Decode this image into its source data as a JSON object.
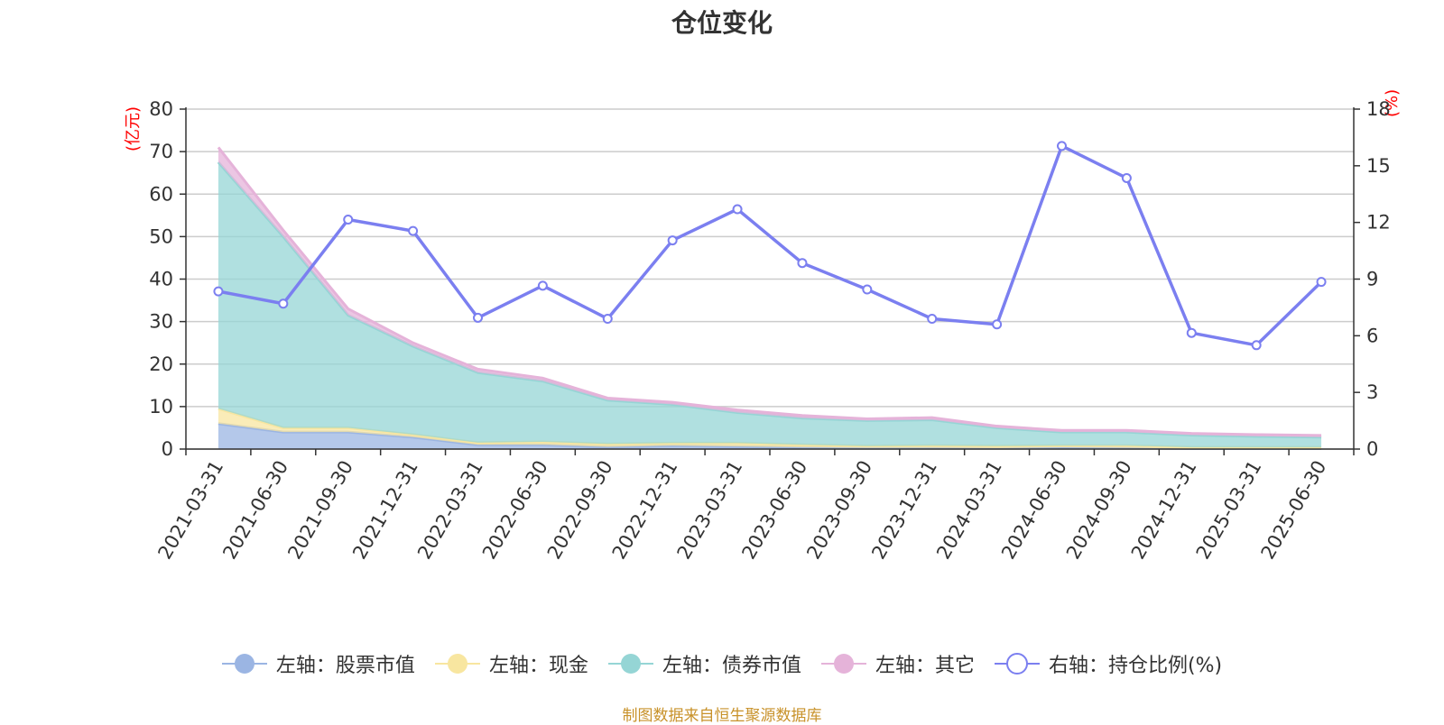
{
  "title": "仓位变化",
  "source": "制图数据来自恒生聚源数据库",
  "colors": {
    "stock": "#9bb5e3",
    "cash": "#f8e6a0",
    "bond": "#95d5d5",
    "other": "#e5b3d9",
    "ratio": "#7b7ff0",
    "unit": "#ff0000",
    "source": "#c8922a"
  },
  "legend": [
    {
      "label": "左轴：股票市值",
      "color": "#9bb5e3",
      "type": "area"
    },
    {
      "label": "左轴：现金",
      "color": "#f8e6a0",
      "type": "area"
    },
    {
      "label": "左轴：债券市值",
      "color": "#95d5d5",
      "type": "area"
    },
    {
      "label": "左轴：其它",
      "color": "#e5b3d9",
      "type": "area"
    },
    {
      "label": "右轴：持仓比例(%)",
      "color": "#7b7ff0",
      "type": "line"
    }
  ],
  "chart_data": {
    "type": "area",
    "title": "仓位变化",
    "categories": [
      "2021-03-31",
      "2021-06-30",
      "2021-09-30",
      "2021-12-31",
      "2022-03-31",
      "2022-06-30",
      "2022-09-30",
      "2022-12-31",
      "2023-03-31",
      "2023-06-30",
      "2023-09-30",
      "2023-12-31",
      "2024-03-31",
      "2024-06-30",
      "2024-09-30",
      "2024-12-31",
      "2025-03-31",
      "2025-06-30"
    ],
    "left_axis": {
      "unit": "(亿元)",
      "ylim": [
        0,
        80
      ],
      "ticks": [
        0,
        10,
        20,
        30,
        40,
        50,
        60,
        70,
        80
      ]
    },
    "right_axis": {
      "unit": "(%)",
      "ylim": [
        0,
        18
      ],
      "ticks": [
        0,
        3,
        6,
        9,
        12,
        15,
        18
      ]
    },
    "stacked": true,
    "series": [
      {
        "name": "左轴：股票市值",
        "axis": "left",
        "values": [
          6.0,
          4.0,
          4.0,
          2.8,
          1.0,
          1.0,
          0.5,
          0.8,
          0.6,
          0.4,
          0.3,
          0.3,
          0.2,
          0.4,
          0.3,
          0.1,
          0.1,
          0.1
        ]
      },
      {
        "name": "左轴：现金",
        "axis": "left",
        "values": [
          3.5,
          1.0,
          1.0,
          0.6,
          0.5,
          0.7,
          0.7,
          0.6,
          0.8,
          0.6,
          0.4,
          0.5,
          0.5,
          0.4,
          0.5,
          0.3,
          0.3,
          0.3
        ]
      },
      {
        "name": "左轴：债券市值",
        "axis": "left",
        "values": [
          58.0,
          45.0,
          26.5,
          20.8,
          16.5,
          14.3,
          10.3,
          9.1,
          7.2,
          6.3,
          6.0,
          6.1,
          4.3,
          3.2,
          3.2,
          2.9,
          2.6,
          2.4
        ]
      },
      {
        "name": "左轴：其它",
        "axis": "left",
        "values": [
          3.5,
          1.5,
          1.5,
          0.8,
          0.8,
          0.7,
          0.5,
          0.5,
          0.6,
          0.6,
          0.4,
          0.5,
          0.4,
          0.4,
          0.4,
          0.4,
          0.4,
          0.4
        ]
      },
      {
        "name": "右轴：持仓比例(%)",
        "axis": "right",
        "type": "line",
        "values": [
          8.35,
          7.7,
          12.15,
          11.55,
          6.95,
          8.65,
          6.9,
          11.05,
          12.7,
          9.85,
          8.45,
          6.9,
          6.6,
          16.05,
          14.35,
          6.15,
          5.5,
          8.85
        ]
      }
    ],
    "grid": true,
    "legend_position": "bottom"
  }
}
